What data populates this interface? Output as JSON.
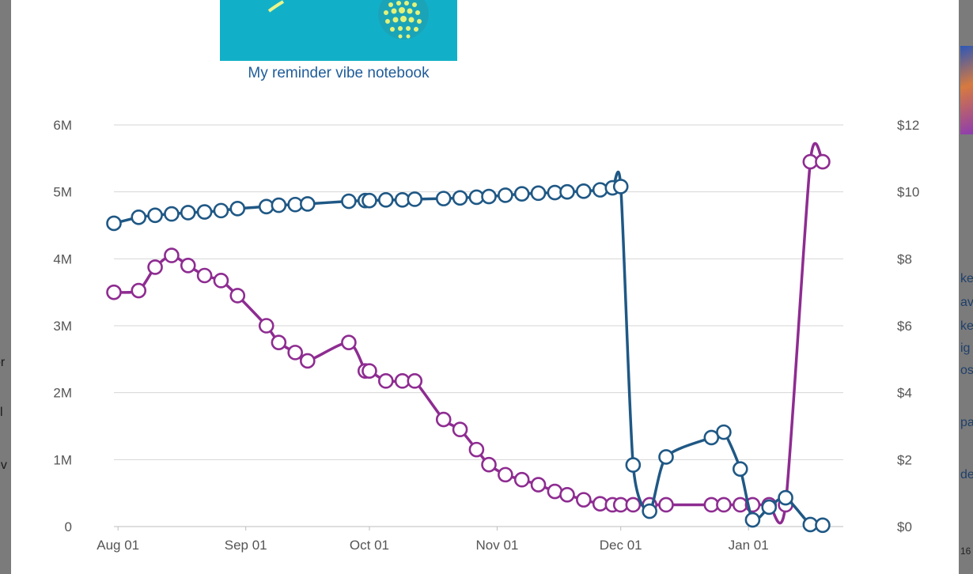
{
  "product": {
    "caption": "My reminder vibe notebook"
  },
  "background_fragments": {
    "left": [
      "or",
      "sl",
      "ev"
    ],
    "right": [
      "ke",
      "av",
      "ke",
      "ig",
      "os",
      "pa",
      "de",
      "16"
    ]
  },
  "colors": {
    "rank_series": "#1f5885",
    "price_series": "#8e2c91",
    "grid": "#d6d6d6",
    "marker_fill": "#ffffff"
  },
  "chart_data": {
    "type": "line",
    "x_ticks": [
      "Aug 01",
      "Sep 01",
      "Oct 01",
      "Nov 01",
      "Dec 01",
      "Jan 01"
    ],
    "y_left": {
      "ticks": [
        "0",
        "1M",
        "2M",
        "3M",
        "4M",
        "5M",
        "6M"
      ],
      "range": [
        0,
        6000000
      ]
    },
    "y_right": {
      "ticks": [
        "$0",
        "$2",
        "$4",
        "$6",
        "$8",
        "$10",
        "$12"
      ],
      "range": [
        0,
        12
      ]
    },
    "x_range": [
      "2025-07-31",
      "2026-01-24"
    ],
    "grid": true,
    "legend": "none",
    "series": [
      {
        "axis": "left",
        "color": "#1f5885",
        "points": [
          [
            "2025-07-31",
            4530000
          ],
          [
            "2025-08-06",
            4620000
          ],
          [
            "2025-08-10",
            4650000
          ],
          [
            "2025-08-14",
            4670000
          ],
          [
            "2025-08-18",
            4690000
          ],
          [
            "2025-08-22",
            4700000
          ],
          [
            "2025-08-26",
            4720000
          ],
          [
            "2025-08-30",
            4750000
          ],
          [
            "2025-09-06",
            4780000
          ],
          [
            "2025-09-09",
            4800000
          ],
          [
            "2025-09-13",
            4810000
          ],
          [
            "2025-09-16",
            4820000
          ],
          [
            "2025-09-26",
            4860000
          ],
          [
            "2025-09-30",
            4870000
          ],
          [
            "2025-10-01",
            4870000
          ],
          [
            "2025-10-05",
            4880000
          ],
          [
            "2025-10-09",
            4880000
          ],
          [
            "2025-10-12",
            4890000
          ],
          [
            "2025-10-19",
            4900000
          ],
          [
            "2025-10-23",
            4910000
          ],
          [
            "2025-10-27",
            4920000
          ],
          [
            "2025-10-30",
            4930000
          ],
          [
            "2025-11-03",
            4950000
          ],
          [
            "2025-11-07",
            4970000
          ],
          [
            "2025-11-11",
            4980000
          ],
          [
            "2025-11-15",
            4990000
          ],
          [
            "2025-11-18",
            5000000
          ],
          [
            "2025-11-22",
            5010000
          ],
          [
            "2025-11-26",
            5030000
          ],
          [
            "2025-11-29",
            5060000
          ],
          [
            "2025-12-01",
            5080000
          ],
          [
            "2025-12-04",
            920000
          ],
          [
            "2025-12-08",
            230000
          ],
          [
            "2025-12-12",
            1040000
          ],
          [
            "2025-12-23",
            1330000
          ],
          [
            "2025-12-26",
            1410000
          ],
          [
            "2025-12-30",
            860000
          ],
          [
            "2026-01-02",
            100000
          ],
          [
            "2026-01-06",
            290000
          ],
          [
            "2026-01-10",
            430000
          ],
          [
            "2026-01-16",
            30000
          ],
          [
            "2026-01-19",
            20000
          ]
        ]
      },
      {
        "axis": "right",
        "color": "#8e2c91",
        "points": [
          [
            "2025-07-31",
            7.0
          ],
          [
            "2025-08-06",
            7.05
          ],
          [
            "2025-08-10",
            7.75
          ],
          [
            "2025-08-14",
            8.1
          ],
          [
            "2025-08-18",
            7.8
          ],
          [
            "2025-08-22",
            7.5
          ],
          [
            "2025-08-26",
            7.35
          ],
          [
            "2025-08-30",
            6.9
          ],
          [
            "2025-09-06",
            6.0
          ],
          [
            "2025-09-09",
            5.5
          ],
          [
            "2025-09-13",
            5.2
          ],
          [
            "2025-09-16",
            4.95
          ],
          [
            "2025-09-26",
            5.5
          ],
          [
            "2025-09-30",
            4.65
          ],
          [
            "2025-10-01",
            4.65
          ],
          [
            "2025-10-05",
            4.35
          ],
          [
            "2025-10-09",
            4.35
          ],
          [
            "2025-10-12",
            4.35
          ],
          [
            "2025-10-19",
            3.2
          ],
          [
            "2025-10-23",
            2.9
          ],
          [
            "2025-10-27",
            2.3
          ],
          [
            "2025-10-30",
            1.85
          ],
          [
            "2025-11-03",
            1.55
          ],
          [
            "2025-11-07",
            1.4
          ],
          [
            "2025-11-11",
            1.25
          ],
          [
            "2025-11-15",
            1.05
          ],
          [
            "2025-11-18",
            0.95
          ],
          [
            "2025-11-22",
            0.8
          ],
          [
            "2025-11-26",
            0.68
          ],
          [
            "2025-11-29",
            0.65
          ],
          [
            "2025-12-01",
            0.65
          ],
          [
            "2025-12-04",
            0.65
          ],
          [
            "2025-12-08",
            0.65
          ],
          [
            "2025-12-12",
            0.65
          ],
          [
            "2025-12-23",
            0.65
          ],
          [
            "2025-12-26",
            0.65
          ],
          [
            "2025-12-30",
            0.65
          ],
          [
            "2026-01-02",
            0.65
          ],
          [
            "2026-01-06",
            0.65
          ],
          [
            "2026-01-10",
            0.65
          ],
          [
            "2026-01-16",
            10.9
          ],
          [
            "2026-01-19",
            10.9
          ]
        ]
      }
    ]
  }
}
